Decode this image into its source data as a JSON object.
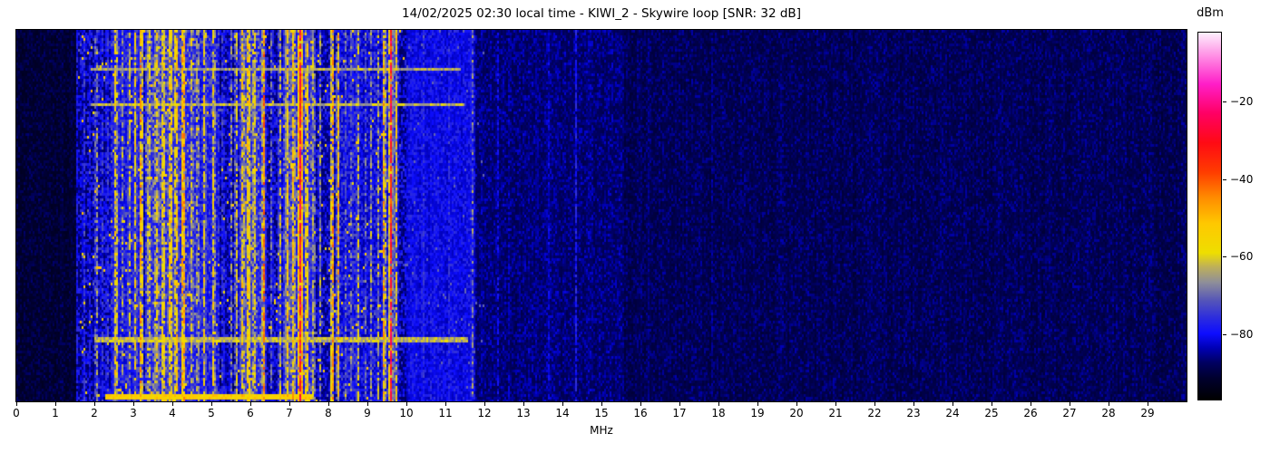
{
  "title": "14/02/2025 02:30 local time - KIWI_2 - Skywire loop [SNR: 32 dB]",
  "station": "KIWI_2",
  "antenna": "Skywire loop",
  "snr_db": 32,
  "timestamp_local": "14/02/2025 02:30",
  "chart_data": {
    "type": "heatmap",
    "subtype": "rf-waterfall-spectrogram",
    "title": "14/02/2025 02:30 local time - KIWI_2 - Skywire loop [SNR: 32 dB]",
    "xlabel": "MHz",
    "xlim": [
      0,
      30
    ],
    "x_ticks": [
      0,
      1,
      2,
      3,
      4,
      5,
      6,
      7,
      8,
      9,
      10,
      11,
      12,
      13,
      14,
      15,
      16,
      17,
      18,
      19,
      20,
      21,
      22,
      23,
      24,
      25,
      26,
      27,
      28,
      29
    ],
    "grid": false,
    "colorbar": {
      "label": "dBm",
      "range": [
        -97,
        -2
      ],
      "ticks": [
        -20,
        -40,
        -60,
        -80
      ],
      "tick_labels": [
        "−20",
        "−40",
        "−60",
        "−80"
      ],
      "position": "right"
    },
    "colormap_stops": [
      [
        0.0,
        "#000000"
      ],
      [
        0.06,
        "#000030"
      ],
      [
        0.1,
        "#000060"
      ],
      [
        0.14,
        "#0000b4"
      ],
      [
        0.18,
        "#0d0dff"
      ],
      [
        0.22,
        "#2a2ae0"
      ],
      [
        0.27,
        "#5555b8"
      ],
      [
        0.32,
        "#8f8f98"
      ],
      [
        0.36,
        "#bcae5c"
      ],
      [
        0.4,
        "#eede00"
      ],
      [
        0.48,
        "#ffc800"
      ],
      [
        0.55,
        "#ff8c00"
      ],
      [
        0.62,
        "#ff3c00"
      ],
      [
        0.7,
        "#ff0a14"
      ],
      [
        0.78,
        "#ff0064"
      ],
      [
        0.86,
        "#ff1ec8"
      ],
      [
        0.93,
        "#ff85e2"
      ],
      [
        1.0,
        "#fdf0fd"
      ]
    ],
    "noise_floor_regions": [
      {
        "f0": 0.0,
        "f1": 1.55,
        "base_dbm": -92.5,
        "noise_db": 4.5
      },
      {
        "f0": 1.55,
        "f1": 10.0,
        "base_dbm": -87.5,
        "noise_db": 10
      },
      {
        "f0": 10.0,
        "f1": 11.75,
        "base_dbm": -83.0,
        "noise_db": 6
      },
      {
        "f0": 11.75,
        "f1": 15.6,
        "base_dbm": -88.5,
        "noise_db": 5
      },
      {
        "f0": 15.6,
        "f1": 30.0,
        "base_dbm": -90.0,
        "noise_db": 4.5
      },
      {
        "f0": 2.4,
        "f1": 3.25,
        "base_dbm": -82.0,
        "noise_db": 10
      },
      {
        "f0": 3.3,
        "f1": 4.6,
        "base_dbm": -80.0,
        "noise_db": 12
      },
      {
        "f0": 4.6,
        "f1": 5.2,
        "base_dbm": -82.0,
        "noise_db": 10
      },
      {
        "f0": 5.7,
        "f1": 6.35,
        "base_dbm": -80.0,
        "noise_db": 12
      },
      {
        "f0": 6.85,
        "f1": 7.65,
        "base_dbm": -80.0,
        "noise_db": 12
      },
      {
        "f0": 8.3,
        "f1": 9.8,
        "base_dbm": -84.0,
        "noise_db": 10
      }
    ],
    "signal_bands": [
      {
        "f": 1.56,
        "sigma": 0.03,
        "peak_dbm": -78,
        "flicker": 0.35
      },
      {
        "f": 1.73,
        "sigma": 0.03,
        "peak_dbm": -72,
        "flicker": 0.4
      },
      {
        "f": 1.88,
        "sigma": 0.03,
        "peak_dbm": -78,
        "flicker": 0.4
      },
      {
        "f": 2.05,
        "sigma": 0.03,
        "peak_dbm": -57,
        "flicker": 0.5
      },
      {
        "f": 2.2,
        "sigma": 0.04,
        "peak_dbm": -74,
        "flicker": 0.4
      },
      {
        "f": 2.33,
        "sigma": 0.03,
        "peak_dbm": -68,
        "flicker": 0.5
      },
      {
        "f": 2.55,
        "sigma": 0.05,
        "peak_dbm": -53,
        "flicker": 0.35
      },
      {
        "f": 2.72,
        "sigma": 0.03,
        "peak_dbm": -63,
        "flicker": 0.5
      },
      {
        "f": 2.9,
        "sigma": 0.04,
        "peak_dbm": -59,
        "flicker": 0.45
      },
      {
        "f": 3.05,
        "sigma": 0.04,
        "peak_dbm": -55,
        "flicker": 0.4
      },
      {
        "f": 3.2,
        "sigma": 0.04,
        "peak_dbm": -44,
        "flicker": 0.3
      },
      {
        "f": 3.4,
        "sigma": 0.05,
        "peak_dbm": -57,
        "flicker": 0.4
      },
      {
        "f": 3.6,
        "sigma": 0.06,
        "peak_dbm": -55,
        "flicker": 0.35
      },
      {
        "f": 3.77,
        "sigma": 0.05,
        "peak_dbm": -53,
        "flicker": 0.3
      },
      {
        "f": 3.95,
        "sigma": 0.06,
        "peak_dbm": -51,
        "flicker": 0.3
      },
      {
        "f": 4.1,
        "sigma": 0.05,
        "peak_dbm": -50,
        "flicker": 0.3
      },
      {
        "f": 4.28,
        "sigma": 0.035,
        "peak_dbm": -38,
        "flicker": 0.2
      },
      {
        "f": 4.5,
        "sigma": 0.04,
        "peak_dbm": -57,
        "flicker": 0.4
      },
      {
        "f": 4.65,
        "sigma": 0.04,
        "peak_dbm": -59,
        "flicker": 0.4
      },
      {
        "f": 4.82,
        "sigma": 0.04,
        "peak_dbm": -55,
        "flicker": 0.4
      },
      {
        "f": 5.06,
        "sigma": 0.04,
        "peak_dbm": -53,
        "flicker": 0.4
      },
      {
        "f": 5.3,
        "sigma": 0.03,
        "peak_dbm": -68,
        "flicker": 0.5
      },
      {
        "f": 5.5,
        "sigma": 0.03,
        "peak_dbm": -63,
        "flicker": 0.5
      },
      {
        "f": 5.64,
        "sigma": 0.04,
        "peak_dbm": -57,
        "flicker": 0.4
      },
      {
        "f": 5.8,
        "sigma": 0.05,
        "peak_dbm": -53,
        "flicker": 0.35
      },
      {
        "f": 5.95,
        "sigma": 0.06,
        "peak_dbm": -51,
        "flicker": 0.3
      },
      {
        "f": 6.1,
        "sigma": 0.05,
        "peak_dbm": -55,
        "flicker": 0.35
      },
      {
        "f": 6.34,
        "sigma": 0.04,
        "peak_dbm": -44,
        "flicker": 0.25
      },
      {
        "f": 6.55,
        "sigma": 0.03,
        "peak_dbm": -65,
        "flicker": 0.5
      },
      {
        "f": 6.76,
        "sigma": 0.04,
        "peak_dbm": -59,
        "flicker": 0.4
      },
      {
        "f": 6.95,
        "sigma": 0.05,
        "peak_dbm": -53,
        "flicker": 0.3
      },
      {
        "f": 7.1,
        "sigma": 0.05,
        "peak_dbm": -51,
        "flicker": 0.3
      },
      {
        "f": 7.28,
        "sigma": 0.05,
        "peak_dbm": -27,
        "flicker": 0.1
      },
      {
        "f": 7.45,
        "sigma": 0.05,
        "peak_dbm": -53,
        "flicker": 0.3
      },
      {
        "f": 7.62,
        "sigma": 0.04,
        "peak_dbm": -59,
        "flicker": 0.4
      },
      {
        "f": 7.78,
        "sigma": 0.03,
        "peak_dbm": -62,
        "flicker": 0.4
      },
      {
        "f": 8.1,
        "sigma": 0.035,
        "peak_dbm": -42,
        "flicker": 0.25
      },
      {
        "f": 8.24,
        "sigma": 0.025,
        "peak_dbm": -40,
        "flicker": 0.3
      },
      {
        "f": 8.45,
        "sigma": 0.04,
        "peak_dbm": -68,
        "flicker": 0.5
      },
      {
        "f": 8.6,
        "sigma": 0.03,
        "peak_dbm": -62,
        "flicker": 0.5
      },
      {
        "f": 8.76,
        "sigma": 0.04,
        "peak_dbm": -59,
        "flicker": 0.45
      },
      {
        "f": 8.95,
        "sigma": 0.03,
        "peak_dbm": -68,
        "flicker": 0.5
      },
      {
        "f": 9.1,
        "sigma": 0.03,
        "peak_dbm": -64,
        "flicker": 0.5
      },
      {
        "f": 9.28,
        "sigma": 0.03,
        "peak_dbm": -62,
        "flicker": 0.5
      },
      {
        "f": 9.43,
        "sigma": 0.04,
        "peak_dbm": -47,
        "flicker": 0.3
      },
      {
        "f": 9.6,
        "sigma": 0.04,
        "peak_dbm": -29,
        "flicker": 0.15
      },
      {
        "f": 9.73,
        "sigma": 0.03,
        "peak_dbm": -49,
        "flicker": 0.3
      },
      {
        "f": 10.15,
        "sigma": 0.03,
        "peak_dbm": -77,
        "flicker": 0.4
      },
      {
        "f": 10.45,
        "sigma": 0.03,
        "peak_dbm": -75,
        "flicker": 0.4
      },
      {
        "f": 10.8,
        "sigma": 0.03,
        "peak_dbm": -77,
        "flicker": 0.4
      },
      {
        "f": 11.1,
        "sigma": 0.03,
        "peak_dbm": -75,
        "flicker": 0.4
      },
      {
        "f": 11.35,
        "sigma": 0.03,
        "peak_dbm": -77,
        "flicker": 0.4
      },
      {
        "f": 11.68,
        "sigma": 0.025,
        "peak_dbm": -58,
        "flicker": 0.55
      },
      {
        "f": 11.95,
        "sigma": 0.025,
        "peak_dbm": -80,
        "flicker": 0.5
      },
      {
        "f": 12.35,
        "sigma": 0.025,
        "peak_dbm": -80,
        "flicker": 0.5
      },
      {
        "f": 12.62,
        "sigma": 0.02,
        "peak_dbm": -82,
        "flicker": 0.5
      },
      {
        "f": 13.35,
        "sigma": 0.025,
        "peak_dbm": -79,
        "flicker": 0.45
      },
      {
        "f": 13.66,
        "sigma": 0.025,
        "peak_dbm": -80,
        "flicker": 0.5
      },
      {
        "f": 14.35,
        "sigma": 0.03,
        "peak_dbm": -77,
        "flicker": 0.3
      },
      {
        "f": 15.4,
        "sigma": 0.02,
        "peak_dbm": -82,
        "flicker": 0.5
      },
      {
        "f": 16.2,
        "sigma": 0.02,
        "peak_dbm": -84,
        "flicker": 0.55
      },
      {
        "f": 17.3,
        "sigma": 0.02,
        "peak_dbm": -83,
        "flicker": 0.5
      },
      {
        "f": 17.85,
        "sigma": 0.02,
        "peak_dbm": -82,
        "flicker": 0.45
      },
      {
        "f": 19.6,
        "sigma": 0.02,
        "peak_dbm": -85,
        "flicker": 0.55
      },
      {
        "f": 21.4,
        "sigma": 0.02,
        "peak_dbm": -86,
        "flicker": 0.55
      },
      {
        "f": 24.0,
        "sigma": 0.02,
        "peak_dbm": -86,
        "flicker": 0.6
      },
      {
        "f": 26.5,
        "sigma": 0.02,
        "peak_dbm": -86,
        "flicker": 0.6
      }
    ],
    "broadband_time_events": [
      {
        "t_frac": 0.105,
        "f0": 1.9,
        "f1": 11.4,
        "level_dbm": -64,
        "rows": 1
      },
      {
        "t_frac": 0.195,
        "f0": 1.9,
        "f1": 11.5,
        "level_dbm": -63,
        "rows": 1
      },
      {
        "t_frac": 0.829,
        "f0": 2.0,
        "f1": 11.6,
        "level_dbm": -63,
        "rows": 2
      },
      {
        "t_frac": 0.988,
        "f0": 2.3,
        "f1": 7.6,
        "level_dbm": -54,
        "rows": 2
      }
    ]
  }
}
